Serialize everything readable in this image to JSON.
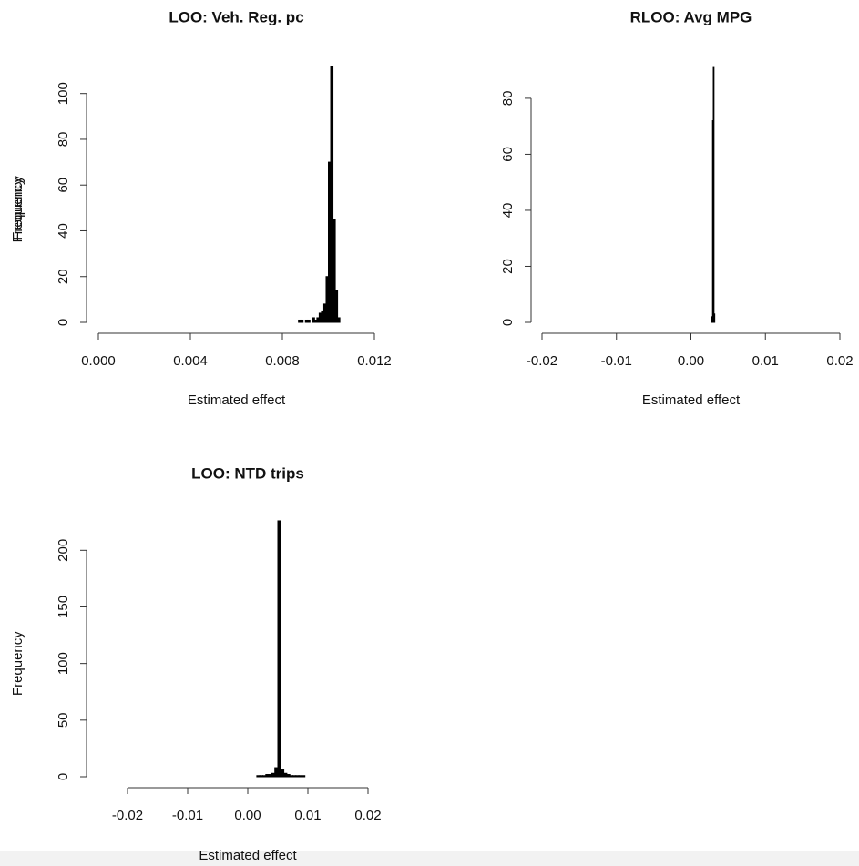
{
  "chart_data": [
    {
      "type": "histogram",
      "title": "LOO: Veh. Reg. pc",
      "xlabel": "Estimated effect",
      "ylabel": "Frequency",
      "color": "#000000",
      "bins": [
        0.0087,
        0.0088,
        0.0089,
        0.009,
        0.0091,
        0.0092,
        0.0093,
        0.0094,
        0.0095,
        0.0096,
        0.0097,
        0.0098,
        0.0099,
        0.01,
        0.0101,
        0.0102,
        0.0103,
        0.0104,
        0.0105
      ],
      "values": [
        1,
        1,
        0,
        1,
        1,
        0,
        2,
        1,
        2,
        4,
        5,
        8,
        20,
        70,
        112,
        45,
        14,
        2
      ],
      "xlim": [
        0,
        0.012
      ],
      "xticks": [
        {
          "value": 0,
          "label": "0.000"
        },
        {
          "value": 0.004,
          "label": "0.004"
        },
        {
          "value": 0.008,
          "label": "0.008"
        },
        {
          "value": 0.012,
          "label": "0.012"
        }
      ],
      "ylim": [
        0,
        115
      ],
      "yticks": [
        0,
        20,
        40,
        60,
        80,
        100
      ]
    },
    {
      "type": "histogram",
      "title": "RLOO: Avg MPG",
      "xlabel": "Estimated effect",
      "ylabel": "Frequency",
      "color": "#000000",
      "bins": [
        0.0027,
        0.0028,
        0.0029,
        0.003,
        0.0031,
        0.0032
      ],
      "values": [
        1,
        2,
        72,
        91,
        3
      ],
      "xlim": [
        -0.02,
        0.02
      ],
      "xticks": [
        -0.02,
        -0.01,
        {
          "value": 0,
          "label": "0.00"
        },
        0.01,
        0.02
      ],
      "ylim": [
        0,
        92
      ],
      "yticks": [
        0,
        20,
        40,
        60,
        80
      ]
    },
    {
      "type": "histogram",
      "title": "LOO: NTD trips",
      "xlabel": "Estimated effect",
      "ylabel": "Frequency",
      "color": "#000000",
      "bins": [
        0.0015,
        0.002,
        0.0025,
        0.003,
        0.0035,
        0.004,
        0.0045,
        0.005,
        0.0055,
        0.006,
        0.0065,
        0.007,
        0.0075,
        0.008,
        0.0085,
        0.009,
        0.0095
      ],
      "values": [
        1,
        1,
        1,
        2,
        2,
        3,
        8,
        226,
        6,
        3,
        2,
        1,
        1,
        1,
        1,
        1
      ],
      "xlim": [
        -0.02,
        0.02
      ],
      "xticks": [
        -0.02,
        -0.01,
        {
          "value": 0,
          "label": "0.00"
        },
        0.01,
        0.02
      ],
      "ylim": [
        0,
        230
      ],
      "yticks": [
        0,
        50,
        100,
        150,
        200
      ]
    }
  ]
}
